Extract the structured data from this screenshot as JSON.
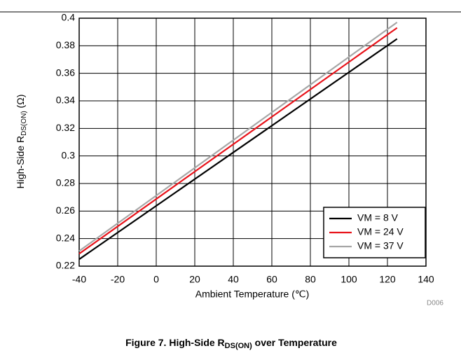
{
  "chart_data": {
    "type": "line",
    "ylabel": {
      "main": "High-Side R",
      "sub": "DS(ON)",
      "unit": " (Ω)"
    },
    "xlabel": "Ambient Temperature (℃)",
    "code": "D006",
    "caption": {
      "main": "Figure 7. High-Side R",
      "sub": "DS(ON)",
      "rest": " over Temperature"
    },
    "x": [
      -40,
      125
    ],
    "series": [
      {
        "name": "VM = 8 V",
        "color": "#000000",
        "values": [
          0.225,
          0.385
        ]
      },
      {
        "name": "VM = 24 V",
        "color": "#e8141b",
        "values": [
          0.229,
          0.393
        ]
      },
      {
        "name": "VM = 37 V",
        "color": "#a6a6a6",
        "values": [
          0.231,
          0.397
        ]
      }
    ],
    "xlim": [
      -40,
      140
    ],
    "xticks": [
      -40,
      -20,
      0,
      20,
      40,
      60,
      80,
      100,
      120,
      140
    ],
    "ylim": [
      0.22,
      0.4
    ],
    "yticks": [
      0.22,
      0.24,
      0.26,
      0.28,
      0.3,
      0.32,
      0.34,
      0.36,
      0.38,
      0.4
    ],
    "grid": true,
    "legend": "lower right"
  }
}
